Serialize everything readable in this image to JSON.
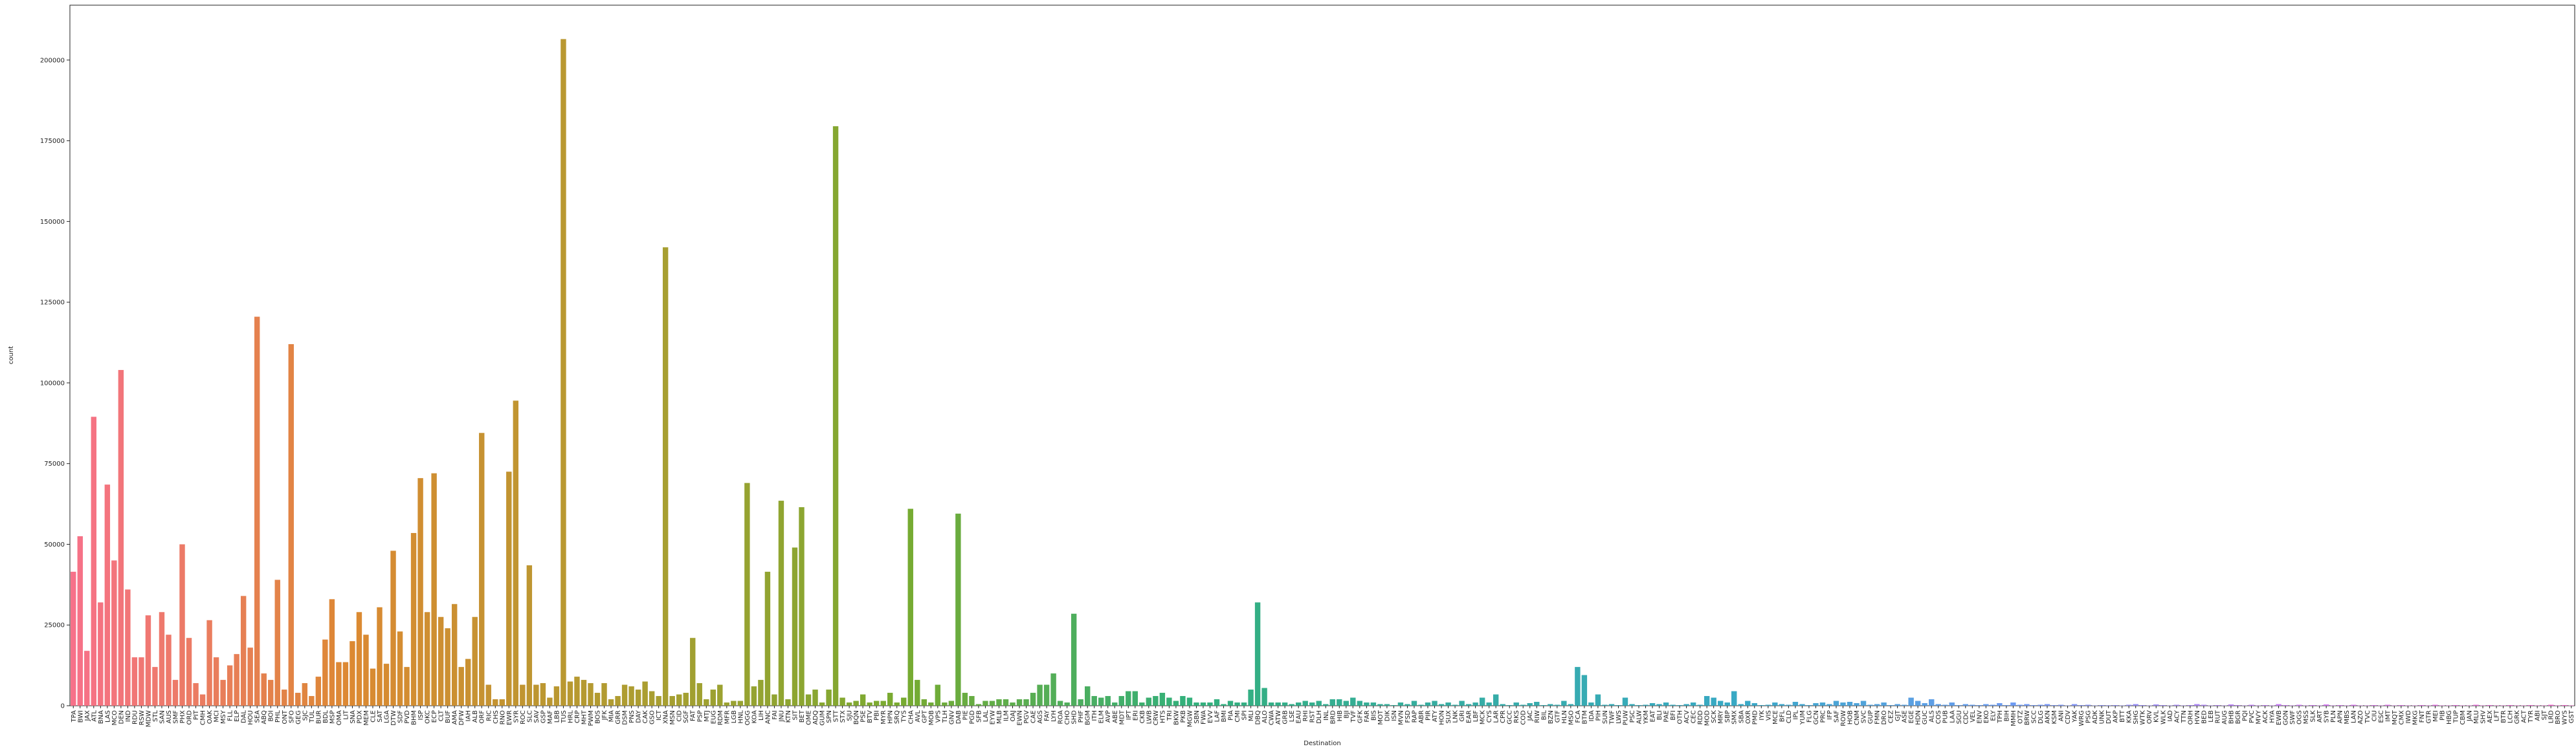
{
  "chart_data": {
    "type": "bar",
    "xlabel": "Destination",
    "ylabel": "count",
    "palette": [
      "#f77189",
      "#dc8932",
      "#ae9d31",
      "#77ab31",
      "#33b07a",
      "#36ada4",
      "#38a9c5",
      "#6e9bf4",
      "#cc7af4",
      "#f565cc"
    ],
    "ylim": [
      0,
      217000
    ],
    "yticks": [
      0,
      25000,
      50000,
      75000,
      100000,
      125000,
      150000,
      175000,
      200000
    ],
    "categories": [
      "TPA",
      "BWI",
      "JAX",
      "ATL",
      "BNA",
      "LAS",
      "MCO",
      "DEN",
      "IND",
      "RDU",
      "RSW",
      "MDW",
      "STL",
      "SAN",
      "AUS",
      "SMF",
      "PHX",
      "ORD",
      "PIT",
      "CMH",
      "OAK",
      "MCI",
      "MSY",
      "FLL",
      "ELP",
      "DAL",
      "HOU",
      "SEA",
      "ABQ",
      "BOI",
      "PHL",
      "ONT",
      "SFO",
      "GEG",
      "SJC",
      "TUL",
      "BUR",
      "BDL",
      "MSP",
      "OMA",
      "LIT",
      "SNA",
      "PDX",
      "MEM",
      "CLE",
      "SAT",
      "LGA",
      "DTW",
      "SDF",
      "PVD",
      "BHM",
      "ISP",
      "OKC",
      "ECP",
      "CLT",
      "BUF",
      "AMA",
      "DFW",
      "IAH",
      "ALB",
      "ORF",
      "RIC",
      "CHS",
      "RNO",
      "EWR",
      "SYR",
      "ROC",
      "SLC",
      "SAV",
      "GSP",
      "MAF",
      "LBB",
      "TUS",
      "HRL",
      "CRP",
      "MHT",
      "PWM",
      "BOS",
      "JFK",
      "MIA",
      "GRR",
      "DSM",
      "PNS",
      "DAY",
      "CAK",
      "GSO",
      "ICT",
      "XNA",
      "MSN",
      "CID",
      "SGF",
      "FAT",
      "PSP",
      "MTJ",
      "EUG",
      "RDM",
      "MFR",
      "LGB",
      "HNL",
      "OGG",
      "KOA",
      "LIH",
      "ANC",
      "FAI",
      "JNU",
      "KTN",
      "SIT",
      "BET",
      "OME",
      "ADQ",
      "GUM",
      "SPN",
      "STT",
      "STX",
      "SJU",
      "BQN",
      "PSE",
      "BTV",
      "PBI",
      "MYR",
      "HPN",
      "SRQ",
      "TYS",
      "CHA",
      "AVL",
      "GPT",
      "MOB",
      "VPS",
      "TLH",
      "GNV",
      "DAB",
      "PIE",
      "PGD",
      "SFB",
      "LAL",
      "EYW",
      "MLB",
      "ILM",
      "OAJ",
      "EWN",
      "PGV",
      "CAE",
      "AGS",
      "FAY",
      "LYH",
      "ROA",
      "CHO",
      "SHD",
      "PHF",
      "BGM",
      "ITH",
      "ELM",
      "AVP",
      "ABE",
      "MDT",
      "IPT",
      "ERI",
      "CKB",
      "LWB",
      "CRW",
      "HTS",
      "TRI",
      "BKW",
      "PKB",
      "MGW",
      "SBN",
      "FWA",
      "EVV",
      "LAF",
      "BMI",
      "PIA",
      "CMI",
      "SPI",
      "MLI",
      "DBQ",
      "ALO",
      "CWA",
      "ATW",
      "GRB",
      "LSE",
      "EAU",
      "RHI",
      "RST",
      "DLH",
      "INL",
      "BRD",
      "HIB",
      "BJI",
      "TVF",
      "GFK",
      "FAR",
      "BIS",
      "MOT",
      "DIK",
      "ISN",
      "MVN",
      "FSD",
      "RAP",
      "ABR",
      "PIR",
      "ATY",
      "HON",
      "SUX",
      "LNK",
      "GRI",
      "EAR",
      "LBF",
      "MCK",
      "CYS",
      "LAR",
      "CPR",
      "GCC",
      "RKS",
      "COD",
      "JAC",
      "RIW",
      "BIL",
      "BZN",
      "GTF",
      "HLN",
      "MSO",
      "FCA",
      "BTM",
      "IDA",
      "PIH",
      "SUN",
      "TWF",
      "LWS",
      "PUW",
      "PSC",
      "ALW",
      "YKM",
      "EAT",
      "BLI",
      "PAE",
      "BFI",
      "OTH",
      "ACV",
      "CEC",
      "RDD",
      "MOD",
      "SCK",
      "MRY",
      "SBP",
      "SMX",
      "SBA",
      "OXR",
      "PMD",
      "IYK",
      "VIS",
      "MCE",
      "BFL",
      "CLD",
      "IPL",
      "YUM",
      "FLG",
      "GCN",
      "PRC",
      "IFP",
      "SAF",
      "ROW",
      "HOB",
      "CNM",
      "SVC",
      "GUP",
      "FMN",
      "DRO",
      "CEZ",
      "GJT",
      "ASE",
      "EGE",
      "HDN",
      "GUC",
      "ALS",
      "COS",
      "PUB",
      "LAA",
      "SGU",
      "CDC",
      "VEL",
      "ENV",
      "EKO",
      "ELY",
      "TPH",
      "BIH",
      "MMH",
      "OTZ",
      "BRW",
      "SCC",
      "DLG",
      "AKN",
      "KSM",
      "ANI",
      "CDV",
      "YAK",
      "WRG",
      "PSG",
      "ADK",
      "UNK",
      "DUT",
      "AKP",
      "BTT",
      "KKA",
      "SHG",
      "WTK",
      "ORV",
      "KVL",
      "WLK",
      "IAD",
      "ACY",
      "TTN",
      "ORH",
      "HVN",
      "BED",
      "LEB",
      "RUT",
      "AUG",
      "BHB",
      "BGR",
      "PQI",
      "PVC",
      "MVY",
      "ACK",
      "HYA",
      "EWB",
      "GON",
      "SWF",
      "OGS",
      "MSS",
      "SLK",
      "ART",
      "SYB",
      "PLN",
      "APN",
      "MBS",
      "LAN",
      "AZO",
      "TVC",
      "CIU",
      "ESC",
      "IMT",
      "MQT",
      "CMX",
      "IWD",
      "MKG",
      "FNT",
      "GTR",
      "MEI",
      "PIB",
      "HBG",
      "TUP",
      "CBM",
      "JAN",
      "MLU",
      "SHV",
      "AEX",
      "LFT",
      "BTR",
      "LCH",
      "GRK",
      "ACT",
      "TYR",
      "ABI",
      "SJT",
      "LRD",
      "BRO",
      "WYS",
      "GST"
    ],
    "values": [
      41500,
      52500,
      17000,
      89500,
      32000,
      68500,
      45000,
      104000,
      36000,
      15000,
      15000,
      28000,
      12000,
      29000,
      22000,
      8000,
      50000,
      21000,
      7000,
      3500,
      26500,
      15000,
      8000,
      12500,
      16000,
      34000,
      18000,
      120500,
      10000,
      8000,
      39000,
      5000,
      112000,
      4000,
      7000,
      3000,
      9000,
      20500,
      33000,
      13500,
      13500,
      20000,
      29000,
      22000,
      11500,
      30500,
      13000,
      48000,
      23000,
      12000,
      53500,
      70500,
      29000,
      72000,
      27500,
      24000,
      31500,
      12000,
      14500,
      27500,
      84500,
      6500,
      2000,
      2000,
      72500,
      94500,
      6500,
      43500,
      6500,
      7000,
      2500,
      6000,
      206500,
      7500,
      9000,
      8000,
      7000,
      4000,
      7000,
      2000,
      3000,
      6500,
      6000,
      5000,
      7500,
      4500,
      3000,
      142000,
      3000,
      3500,
      4000,
      21000,
      7000,
      2000,
      5000,
      6500,
      1000,
      1500,
      1500,
      69000,
      6000,
      8000,
      41500,
      3500,
      63500,
      2000,
      49000,
      61500,
      3500,
      5000,
      1000,
      5000,
      179500,
      2500,
      1000,
      1500,
      3500,
      1000,
      1500,
      1500,
      4000,
      1000,
      2500,
      61000,
      8000,
      2000,
      1000,
      6500,
      1000,
      1500,
      59500,
      4000,
      3000,
      500,
      1500,
      1500,
      2000,
      2000,
      1000,
      2000,
      2000,
      4000,
      6500,
      6500,
      10000,
      1500,
      1000,
      28500,
      2000,
      6000,
      3000,
      2500,
      3000,
      1000,
      3000,
      4500,
      4500,
      1000,
      2500,
      3000,
      4000,
      2500,
      1500,
      3000,
      2500,
      1000,
      1000,
      1000,
      2000,
      500,
      1500,
      1000,
      1000,
      5000,
      32000,
      5500,
      1000,
      1000,
      1000,
      500,
      1000,
      1500,
      1000,
      1500,
      500,
      2000,
      2000,
      1500,
      2500,
      1500,
      1000,
      1000,
      500,
      500,
      200,
      1000,
      500,
      1500,
      300,
      1000,
      1500,
      500,
      1000,
      300,
      1500,
      500,
      1000,
      2500,
      1000,
      3500,
      500,
      200,
      1000,
      300,
      800,
      1200,
      200,
      500,
      300,
      1500,
      500,
      12000,
      9500,
      1000,
      3500,
      300,
      500,
      200,
      2500,
      500,
      200,
      300,
      800,
      500,
      1000,
      300,
      200,
      500,
      1000,
      300,
      3000,
      2500,
      1500,
      1000,
      4500,
      500,
      1500,
      800,
      200,
      300,
      1000,
      500,
      300,
      1200,
      500,
      200,
      800,
      1000,
      500,
      1500,
      1000,
      1200,
      800,
      1500,
      300,
      500,
      1000,
      200,
      500,
      300,
      2500,
      1500,
      800,
      2000,
      500,
      300,
      1000,
      200,
      500,
      300,
      200,
      500,
      300,
      800,
      200,
      1000,
      300,
      500,
      200,
      300,
      500,
      200,
      300,
      100,
      500,
      200,
      300,
      100,
      200,
      150,
      200,
      100,
      300,
      500,
      200,
      100,
      400,
      200,
      100,
      300,
      100,
      200,
      500,
      300,
      100,
      200,
      100,
      400,
      200,
      100,
      300,
      100,
      200,
      100,
      500,
      200,
      100,
      300,
      100,
      200,
      100,
      400,
      100,
      200,
      100,
      300,
      100,
      100,
      200,
      100,
      300,
      100,
      200,
      100,
      100,
      200,
      100,
      300,
      100,
      100,
      200,
      100,
      100,
      300,
      100,
      200,
      100,
      100,
      200,
      100,
      100,
      200,
      100,
      100,
      300,
      100,
      200,
      100
    ]
  }
}
